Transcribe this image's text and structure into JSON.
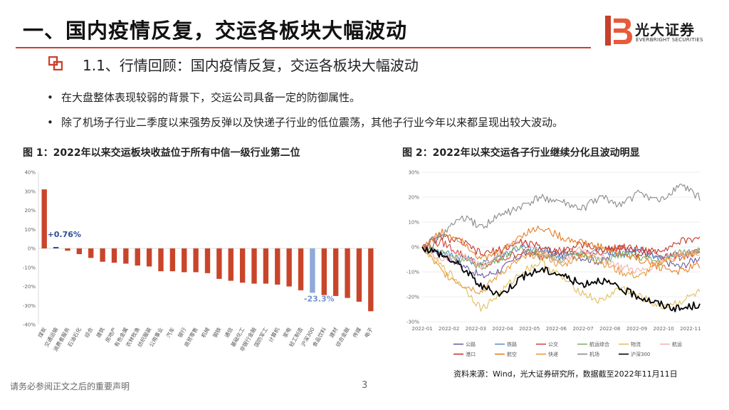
{
  "header": {
    "title": "一、国内疫情反复，交运各板块大幅波动",
    "logo_text": "光大证券",
    "logo_sub": "EVERBRIGHT SECURITIES"
  },
  "section": {
    "subtitle": "1.1、行情回顾：国内疫情反复，交运各板块大幅波动"
  },
  "bullets": [
    "在大盘整体表现较弱的背景下，交运公司具备一定的防御属性。",
    "除了机场子行业二季度以来强势反弹以及快递子行业的低位震荡，其他子行业今年以来都呈现出较大波动。"
  ],
  "source": "资料来源：Wind，光大证券研究所，数据截至2022年11月11日",
  "footer": {
    "disclaimer": "请务必参阅正文之后的重要声明",
    "page": "3"
  },
  "colors": {
    "accent": "#c8402a",
    "bar": "#c9452a",
    "highlight_bar": "#8fa9d8",
    "annotation_red": "#c9452a",
    "annotation_blue": "#2e4e9a",
    "annotation_lightblue": "#6f93cc"
  },
  "chart_data": [
    {
      "type": "bar",
      "title": "图 1：2022年以来交运板块收益位于所有中信一级行业第二位",
      "categories": [
        "煤炭",
        "交通运输",
        "消费者服务",
        "石油石化",
        "综合",
        "建筑",
        "房地产",
        "有色金属",
        "农林牧渔",
        "纺织服装",
        "公用事业",
        "汽车",
        "银行",
        "商贸零售",
        "机械",
        "钢铁",
        "通信",
        "基础化工",
        "非银行金融",
        "国防军工",
        "计算机",
        "家电",
        "轻工制造",
        "沪深300",
        "食品饮料",
        "建材",
        "综合金融",
        "传媒",
        "电子"
      ],
      "values": [
        31.0,
        0.76,
        -1.2,
        -3.0,
        -5.0,
        -7.0,
        -7.5,
        -8.0,
        -9.0,
        -9.5,
        -12.0,
        -12.0,
        -12.5,
        -12.5,
        -13.0,
        -16.0,
        -17.0,
        -18.0,
        -18.5,
        -18.5,
        -19.0,
        -20.0,
        -22.0,
        -23.3,
        -24.5,
        -25.0,
        -26.0,
        -28.0,
        -33.0
      ],
      "highlight": [
        "交通运输",
        "沪深300"
      ],
      "annotations": [
        {
          "category": "交通运输",
          "text": "+0.76%"
        },
        {
          "category": "沪深300",
          "text": "-23.3%"
        }
      ],
      "ylim": [
        -40,
        40
      ],
      "yticks": [
        "40%",
        "30%",
        "20%",
        "10%",
        "0%",
        "-10%",
        "-20%",
        "-30%",
        "-40%"
      ],
      "ytick_values": [
        40,
        30,
        20,
        10,
        0,
        -10,
        -20,
        -30,
        -40
      ],
      "grid": false
    },
    {
      "type": "line",
      "title": "图 2：2022年以来交运各子行业继续分化且波动明显",
      "x_ticks": [
        "2022-01",
        "2022-02",
        "2022-03",
        "2022-04",
        "2022-05",
        "2022-06",
        "2022-07",
        "2022-08",
        "2022-09",
        "2022-10",
        "2022-11"
      ],
      "x_range": [
        "2022-01-01",
        "2022-11-11"
      ],
      "ylim": [
        -30,
        30
      ],
      "yticks": [
        "30%",
        "20%",
        "10%",
        "0%",
        "-10%",
        "-20%",
        "-30%"
      ],
      "ytick_values": [
        30,
        20,
        10,
        0,
        -10,
        -20,
        -30
      ],
      "grid": true,
      "legend_position": "bottom",
      "series": [
        {
          "name": "公路",
          "color": "#6a5a9e",
          "values": [
            0,
            -3,
            -7,
            -12,
            -9,
            -3,
            -1,
            -3,
            -4,
            -6,
            -2,
            -1,
            -5,
            -8,
            -4
          ]
        },
        {
          "name": "铁路",
          "color": "#5b8fc7",
          "values": [
            0,
            -2,
            -4,
            -7,
            -3,
            0,
            -2,
            -4,
            -3,
            -1,
            -3,
            -2,
            -4,
            -3,
            -2
          ]
        },
        {
          "name": "公交",
          "color": "#d04a3a",
          "values": [
            0,
            2,
            -3,
            -8,
            -5,
            -2,
            -4,
            -1,
            -3,
            -2,
            0,
            -1,
            -3,
            -4,
            -2
          ]
        },
        {
          "name": "航运综合",
          "color": "#7fb069",
          "values": [
            0,
            -2,
            -5,
            -8,
            -4,
            0,
            -3,
            -5,
            -2,
            -6,
            -3,
            -4,
            -6,
            -2,
            -1
          ]
        },
        {
          "name": "物流",
          "color": "#e0c060",
          "values": [
            0,
            -8,
            -15,
            -25,
            -18,
            -10,
            -6,
            -12,
            -18,
            -22,
            -16,
            -20,
            -24,
            -22,
            -18
          ]
        },
        {
          "name": "航运",
          "color": "#f3b2b2",
          "values": [
            0,
            -5,
            -3,
            -8,
            -2,
            3,
            -2,
            -6,
            -1,
            -4,
            -8,
            -10,
            -6,
            -3,
            -2
          ]
        },
        {
          "name": "港口",
          "color": "#c0392b",
          "values": [
            0,
            4,
            2,
            -3,
            -1,
            2,
            0,
            -2,
            1,
            -1,
            0,
            -3,
            -1,
            2,
            4
          ]
        },
        {
          "name": "航空",
          "color": "#e67e22",
          "values": [
            0,
            6,
            3,
            -5,
            -2,
            5,
            8,
            4,
            2,
            0,
            -3,
            -5,
            -8,
            -10,
            -7
          ]
        },
        {
          "name": "快递",
          "color": "#e89a3c",
          "values": [
            0,
            -10,
            -15,
            -18,
            -10,
            -5,
            -2,
            -8,
            -3,
            -6,
            -10,
            -12,
            -6,
            -4,
            -2
          ]
        },
        {
          "name": "机场",
          "color": "#8a8a8a",
          "values": [
            0,
            5,
            12,
            8,
            13,
            16,
            20,
            18,
            15,
            20,
            17,
            22,
            18,
            25,
            20
          ]
        },
        {
          "name": "沪深300",
          "color": "#000000",
          "values": [
            0,
            -3,
            -8,
            -16,
            -19,
            -12,
            -9,
            -11,
            -15,
            -13,
            -17,
            -20,
            -23,
            -25,
            -23
          ]
        }
      ]
    }
  ]
}
